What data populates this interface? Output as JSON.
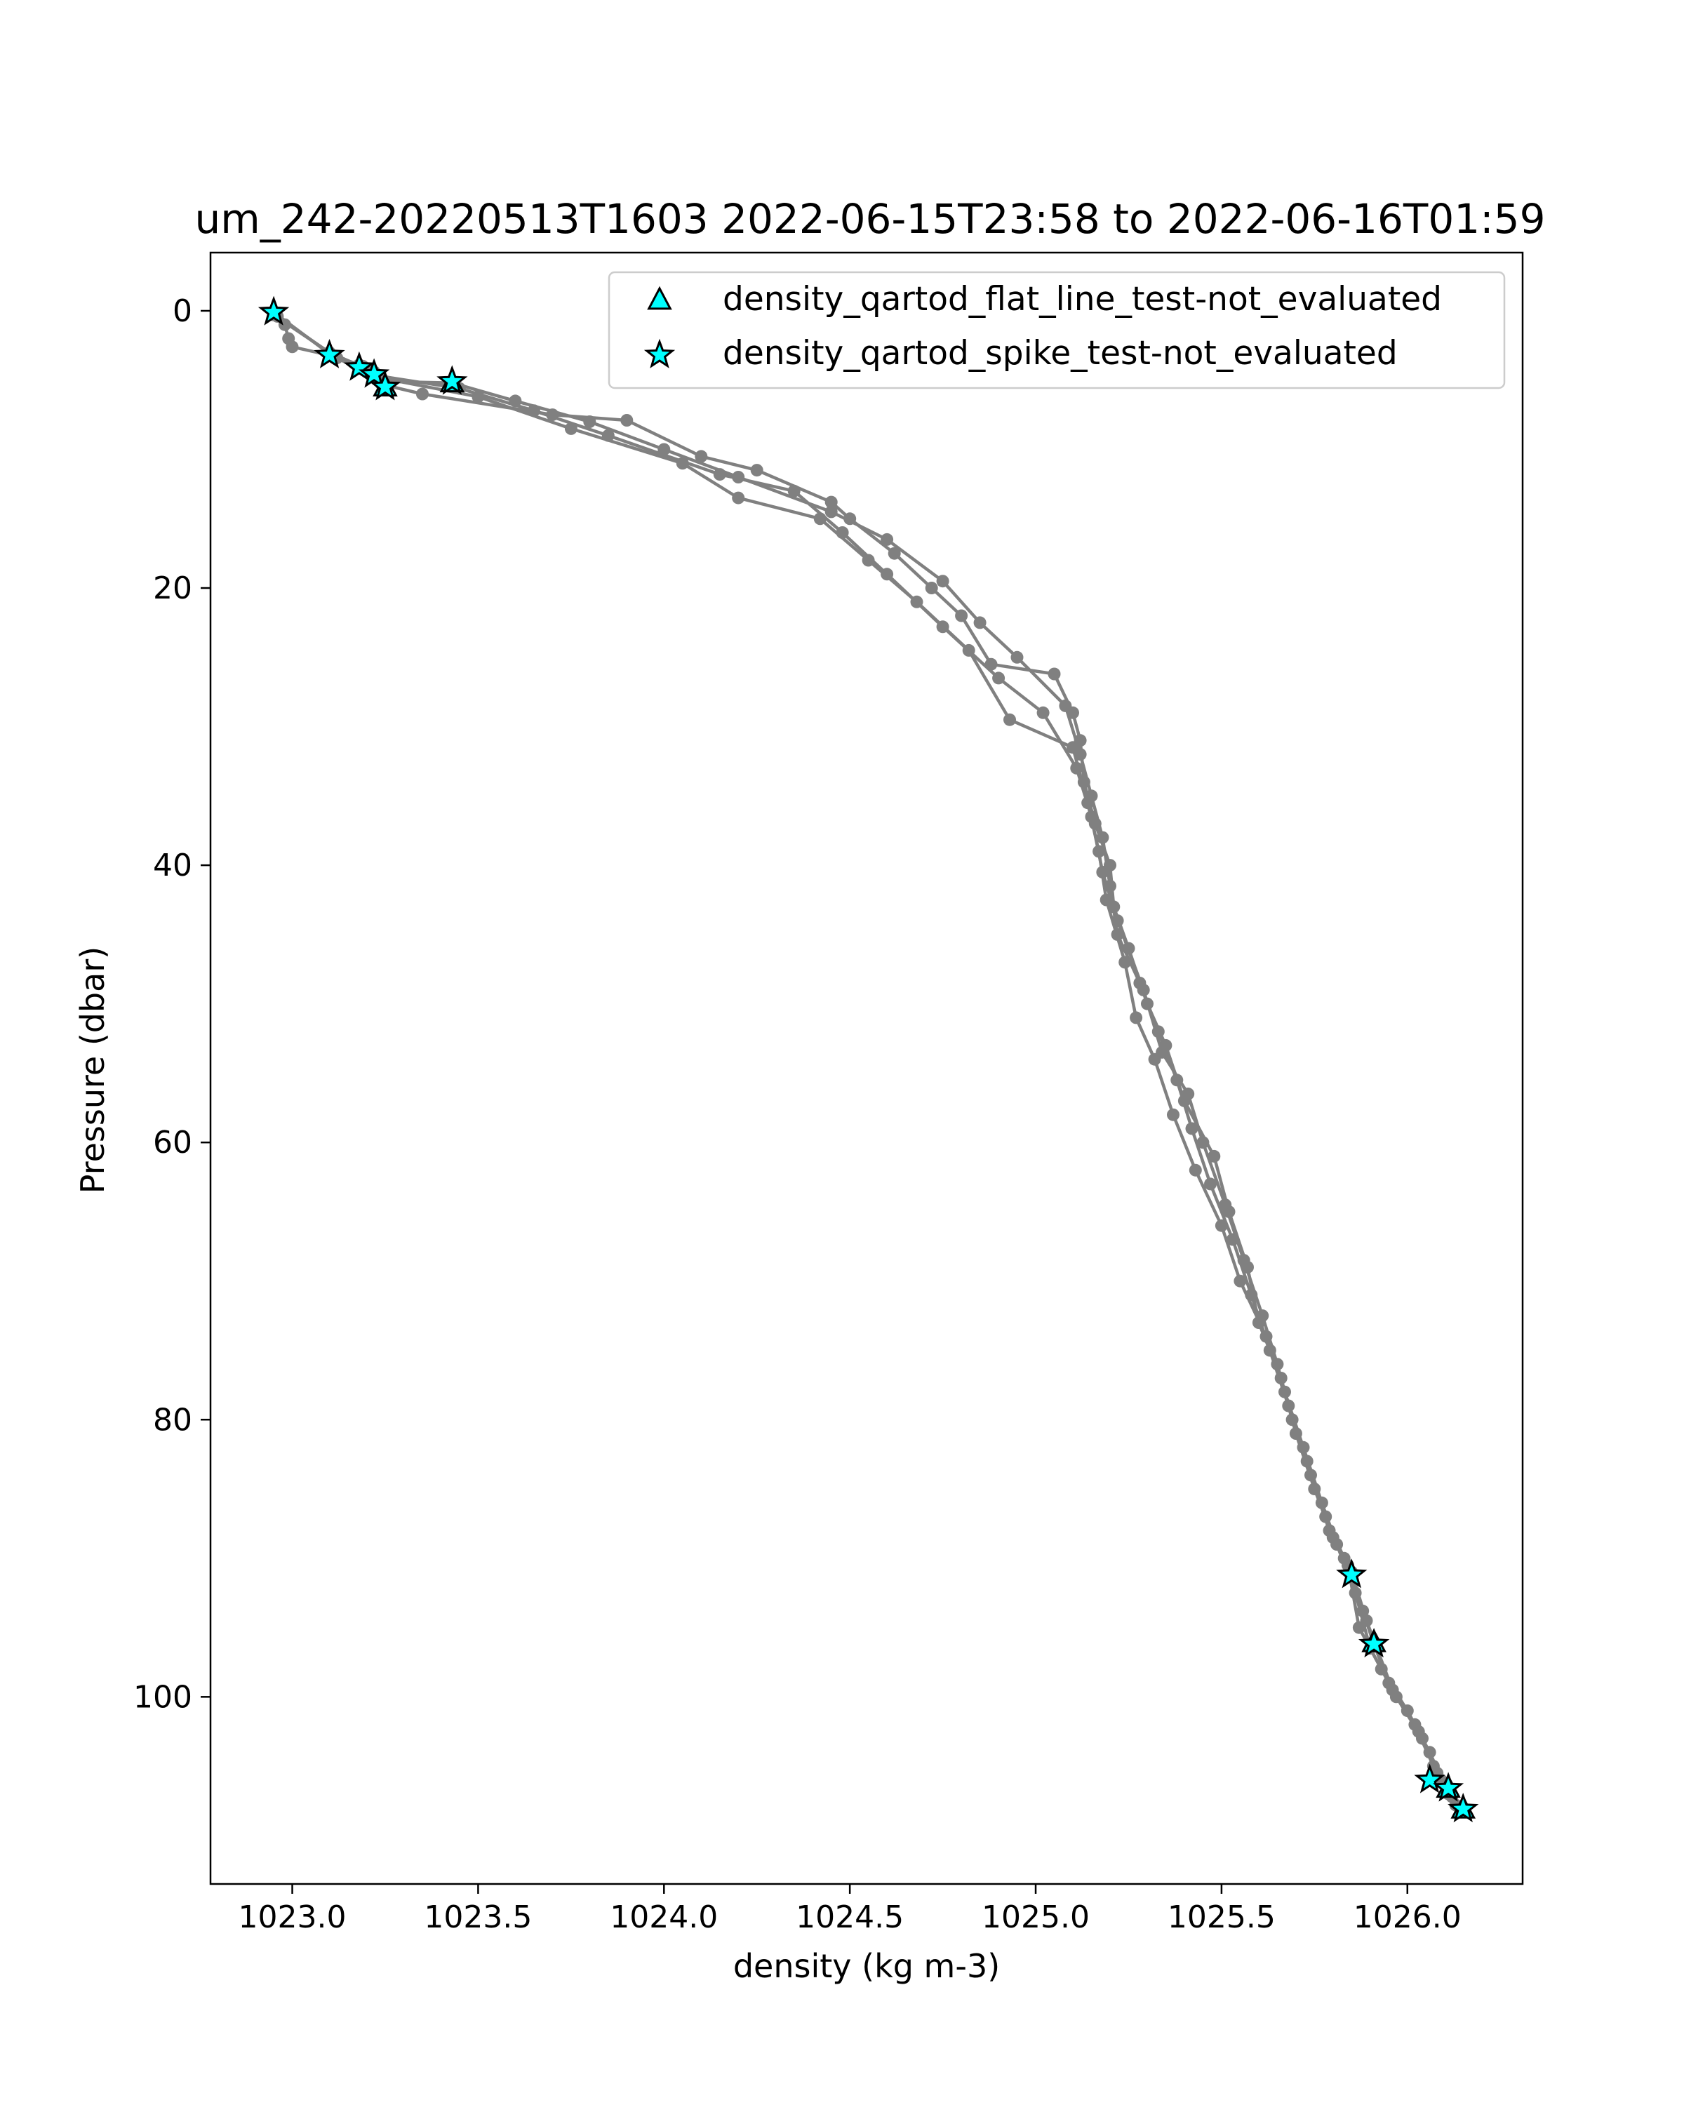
{
  "chart_data": {
    "type": "scatter",
    "title": "um_242-20220513T1603 2022-06-15T23:58 to 2022-06-16T01:59",
    "xlabel": "density (kg m-3)",
    "ylabel": "Pressure (dbar)",
    "xlim": [
      1022.78,
      1026.31
    ],
    "ylim": [
      113.5,
      -4.2
    ],
    "y_inverted": true,
    "xticks": [
      1023.0,
      1023.5,
      1024.0,
      1024.5,
      1025.0,
      1025.5,
      1026.0
    ],
    "xtick_labels": [
      "1023.0",
      "1023.5",
      "1024.0",
      "1024.5",
      "1025.0",
      "1025.5",
      "1026.0"
    ],
    "yticks": [
      0,
      20,
      40,
      60,
      80,
      100
    ],
    "ytick_labels": [
      "0",
      "20",
      "40",
      "60",
      "80",
      "100"
    ],
    "grid": false,
    "legend_position": "top-right",
    "colors": {
      "profile": "#808080",
      "flag_fill": "#00ffff",
      "flag_edge": "#000000"
    },
    "legend": [
      {
        "label": "density_qartod_flat_line_test-not_evaluated",
        "marker": "triangle"
      },
      {
        "label": "density_qartod_spike_test-not_evaluated",
        "marker": "star"
      }
    ],
    "series": [
      {
        "marker": "circle",
        "color": "#808080",
        "profiles": [
          [
            [
              1022.95,
              0.2
            ],
            [
              1022.98,
              1.0
            ],
            [
              1022.99,
              2.0
            ],
            [
              1023.0,
              2.6
            ],
            [
              1023.1,
              3.2
            ],
            [
              1023.18,
              3.9
            ],
            [
              1023.22,
              4.4
            ],
            [
              1023.25,
              5.1
            ],
            [
              1023.43,
              5.2
            ],
            [
              1023.6,
              6.5
            ],
            [
              1023.8,
              8.0
            ],
            [
              1024.0,
              10.0
            ],
            [
              1024.2,
              12.0
            ],
            [
              1024.45,
              14.5
            ],
            [
              1024.6,
              16.5
            ],
            [
              1024.75,
              19.5
            ],
            [
              1024.85,
              22.5
            ],
            [
              1024.95,
              25.0
            ],
            [
              1025.08,
              28.5
            ],
            [
              1025.12,
              32.0
            ],
            [
              1025.15,
              35.0
            ],
            [
              1025.18,
              38.0
            ],
            [
              1025.2,
              41.5
            ],
            [
              1025.22,
              45.0
            ],
            [
              1025.28,
              48.5
            ],
            [
              1025.33,
              52.0
            ],
            [
              1025.38,
              55.5
            ],
            [
              1025.42,
              59.0
            ],
            [
              1025.47,
              63.0
            ],
            [
              1025.53,
              67.0
            ],
            [
              1025.58,
              71.0
            ],
            [
              1025.63,
              75.0
            ],
            [
              1025.68,
              79.0
            ],
            [
              1025.73,
              83.0
            ],
            [
              1025.78,
              87.0
            ],
            [
              1025.83,
              90.0
            ],
            [
              1025.85,
              91.2
            ],
            [
              1025.88,
              93.8
            ],
            [
              1025.91,
              96.2
            ],
            [
              1025.95,
              99.0
            ],
            [
              1026.02,
              102.0
            ],
            [
              1026.07,
              105.0
            ],
            [
              1026.11,
              106.6
            ],
            [
              1026.15,
              108.2
            ]
          ],
          [
            [
              1022.95,
              0.3
            ],
            [
              1023.1,
              3.0
            ],
            [
              1023.2,
              4.2
            ],
            [
              1023.24,
              5.3
            ],
            [
              1023.35,
              6.0
            ],
            [
              1023.7,
              7.5
            ],
            [
              1023.9,
              7.9
            ],
            [
              1024.1,
              10.5
            ],
            [
              1024.25,
              11.5
            ],
            [
              1024.45,
              13.8
            ],
            [
              1024.5,
              15.0
            ],
            [
              1024.62,
              17.5
            ],
            [
              1024.72,
              20.0
            ],
            [
              1024.8,
              22.0
            ],
            [
              1024.88,
              25.5
            ],
            [
              1025.05,
              26.2
            ],
            [
              1025.1,
              29.0
            ],
            [
              1025.12,
              31.0
            ],
            [
              1025.13,
              34.0
            ],
            [
              1025.16,
              37.0
            ],
            [
              1025.2,
              40.0
            ],
            [
              1025.21,
              43.0
            ],
            [
              1025.25,
              46.0
            ],
            [
              1025.3,
              50.0
            ],
            [
              1025.35,
              53.0
            ],
            [
              1025.4,
              57.0
            ],
            [
              1025.48,
              61.0
            ],
            [
              1025.52,
              65.0
            ],
            [
              1025.57,
              69.0
            ],
            [
              1025.6,
              73.0
            ],
            [
              1025.66,
              77.0
            ],
            [
              1025.7,
              81.0
            ],
            [
              1025.75,
              85.0
            ],
            [
              1025.8,
              88.5
            ],
            [
              1025.84,
              90.5
            ],
            [
              1025.87,
              95.0
            ],
            [
              1025.93,
              98.0
            ],
            [
              1026.0,
              101.0
            ],
            [
              1026.06,
              104.0
            ],
            [
              1026.11,
              107.0
            ],
            [
              1026.14,
              108.0
            ]
          ],
          [
            [
              1022.95,
              0.1
            ],
            [
              1023.1,
              3.1
            ],
            [
              1023.19,
              4.0
            ],
            [
              1023.23,
              4.8
            ],
            [
              1023.5,
              6.2
            ],
            [
              1023.75,
              8.5
            ],
            [
              1024.05,
              11.0
            ],
            [
              1024.2,
              13.5
            ],
            [
              1024.42,
              15.0
            ],
            [
              1024.55,
              18.0
            ],
            [
              1024.68,
              21.0
            ],
            [
              1024.82,
              24.5
            ],
            [
              1024.93,
              29.5
            ],
            [
              1025.1,
              31.5
            ],
            [
              1025.14,
              35.5
            ],
            [
              1025.17,
              39.0
            ],
            [
              1025.19,
              42.5
            ],
            [
              1025.24,
              47.0
            ],
            [
              1025.27,
              51.0
            ],
            [
              1025.32,
              54.0
            ],
            [
              1025.37,
              58.0
            ],
            [
              1025.43,
              62.0
            ],
            [
              1025.5,
              66.0
            ],
            [
              1025.55,
              70.0
            ],
            [
              1025.62,
              74.0
            ],
            [
              1025.67,
              78.0
            ],
            [
              1025.72,
              82.0
            ],
            [
              1025.77,
              86.0
            ],
            [
              1025.81,
              89.0
            ],
            [
              1025.86,
              92.5
            ],
            [
              1025.9,
              96.5
            ],
            [
              1025.97,
              100.0
            ],
            [
              1026.04,
              103.0
            ],
            [
              1026.09,
              106.0
            ],
            [
              1026.13,
              107.8
            ]
          ],
          [
            [
              1022.96,
              0.4
            ],
            [
              1023.12,
              3.4
            ],
            [
              1023.21,
              4.6
            ],
            [
              1023.45,
              5.6
            ],
            [
              1023.65,
              7.2
            ],
            [
              1023.85,
              9.0
            ],
            [
              1024.15,
              11.8
            ],
            [
              1024.35,
              13.0
            ],
            [
              1024.48,
              16.0
            ],
            [
              1024.6,
              19.0
            ],
            [
              1024.75,
              22.8
            ],
            [
              1024.9,
              26.5
            ],
            [
              1025.02,
              29.0
            ],
            [
              1025.11,
              33.0
            ],
            [
              1025.15,
              36.5
            ],
            [
              1025.18,
              40.5
            ],
            [
              1025.22,
              44.0
            ],
            [
              1025.29,
              49.0
            ],
            [
              1025.34,
              53.5
            ],
            [
              1025.41,
              56.5
            ],
            [
              1025.45,
              60.0
            ],
            [
              1025.51,
              64.5
            ],
            [
              1025.56,
              68.5
            ],
            [
              1025.61,
              72.5
            ],
            [
              1025.65,
              76.0
            ],
            [
              1025.69,
              80.0
            ],
            [
              1025.74,
              84.0
            ],
            [
              1025.79,
              88.0
            ],
            [
              1025.85,
              91.0
            ],
            [
              1025.89,
              94.5
            ],
            [
              1025.96,
              99.5
            ],
            [
              1026.03,
              102.5
            ],
            [
              1026.08,
              105.5
            ],
            [
              1026.12,
              107.2
            ]
          ]
        ]
      },
      {
        "name": "density_qartod_spike_test-not_evaluated",
        "marker": "star",
        "points": [
          [
            1022.95,
            0.1
          ],
          [
            1023.1,
            3.2
          ],
          [
            1023.18,
            4.1
          ],
          [
            1023.22,
            4.6
          ],
          [
            1023.25,
            5.5
          ],
          [
            1023.43,
            5.1
          ],
          [
            1025.85,
            91.2
          ],
          [
            1025.91,
            96.2
          ],
          [
            1026.06,
            106.0
          ],
          [
            1026.11,
            106.6
          ],
          [
            1026.15,
            108.1
          ]
        ]
      },
      {
        "name": "density_qartod_flat_line_test-not_evaluated",
        "marker": "triangle",
        "points": [
          [
            1023.25,
            5.5
          ],
          [
            1023.43,
            5.2
          ],
          [
            1025.91,
            96.1
          ],
          [
            1026.11,
            106.6
          ],
          [
            1026.15,
            108.1
          ]
        ]
      }
    ]
  }
}
